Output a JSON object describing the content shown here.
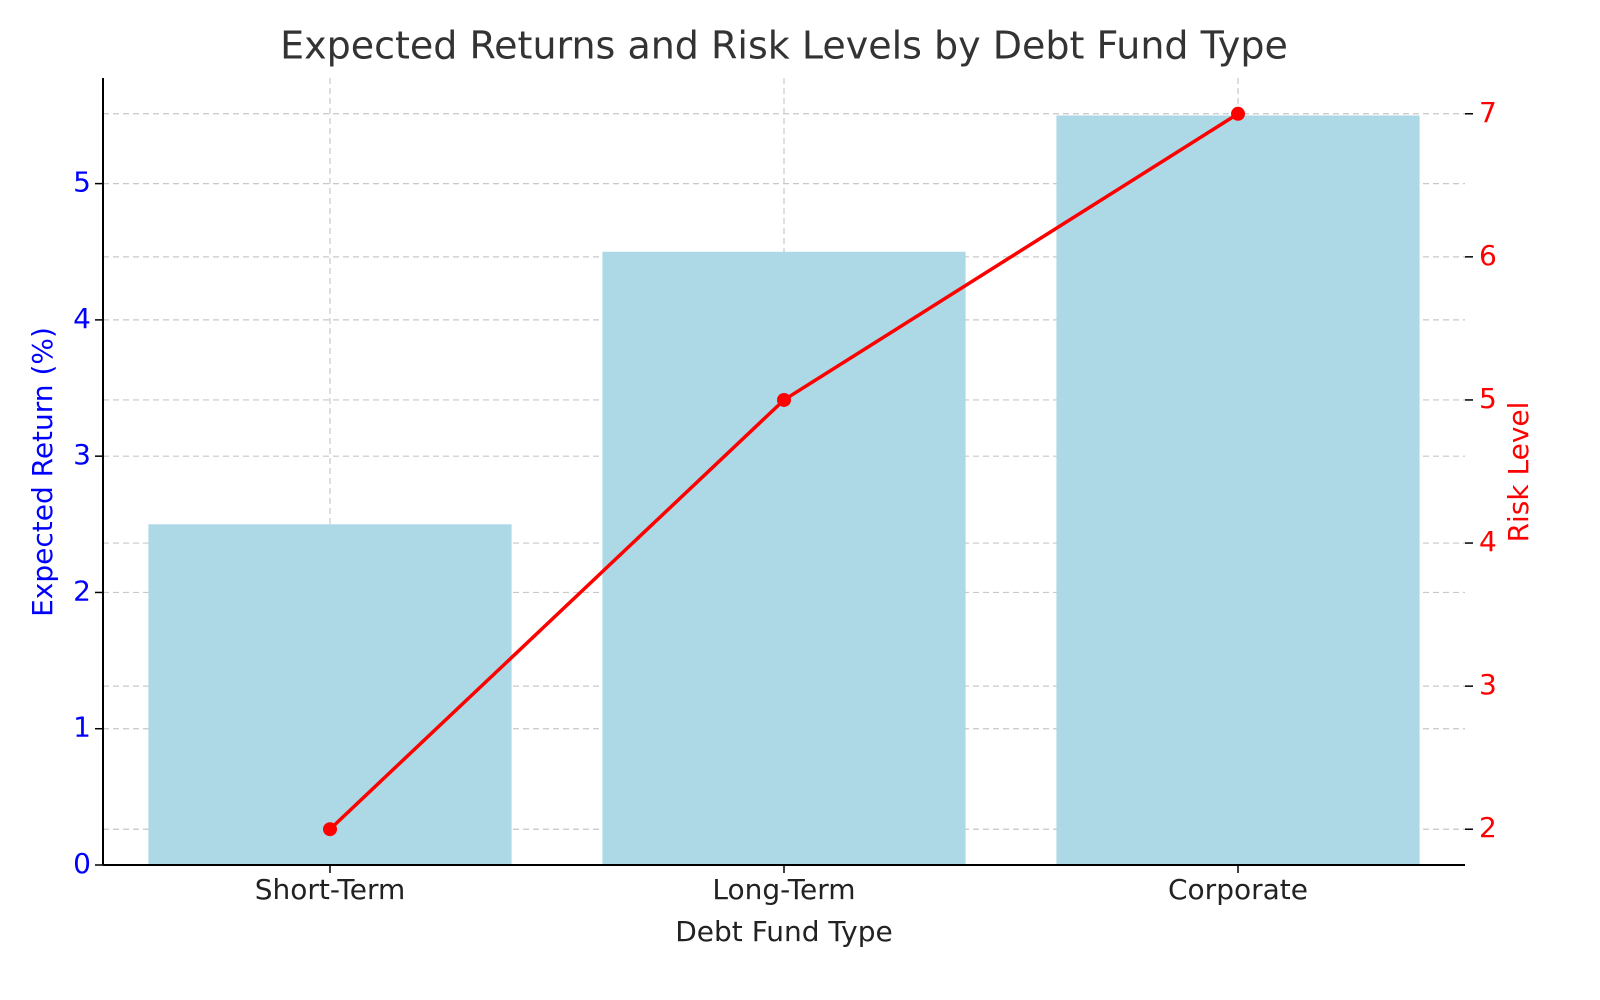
{
  "chart_data": {
    "type": "combo",
    "title": "Expected Returns and Risk Levels by Debt Fund Type",
    "xlabel": "Debt Fund Type",
    "ylabel": "Expected Return (%)",
    "y2label": "Risk Level",
    "categories": [
      "Short-Term",
      "Long-Term",
      "Corporate"
    ],
    "series": [
      {
        "type": "bar",
        "color": "#add8e6",
        "values": [
          2.5,
          4.5,
          5.5
        ]
      },
      {
        "type": "line",
        "color": "#ff0000",
        "axis": "y2",
        "values": [
          2,
          5,
          7
        ]
      }
    ],
    "ylim": [
      0,
      5.775
    ],
    "yticks": [
      0,
      1,
      2,
      3,
      4,
      5
    ],
    "ycolor": "#0000ff",
    "y2lim": [
      1.75,
      7.25
    ],
    "y2ticks": [
      2,
      3,
      4,
      5,
      6,
      7
    ],
    "y2color": "#ff0000",
    "grid": true
  }
}
